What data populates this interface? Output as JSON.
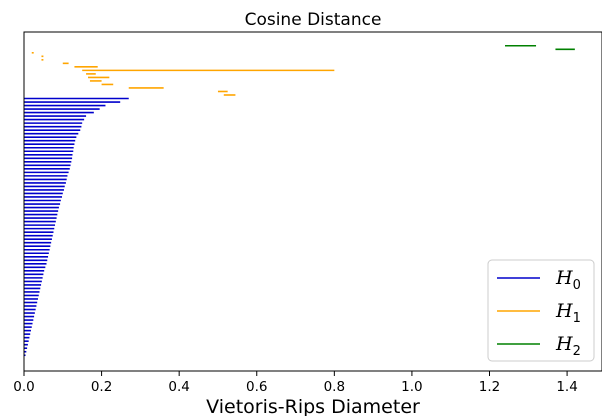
{
  "chart_data": {
    "type": "barcode",
    "title": "Cosine Distance",
    "xlabel": "Vietoris-Rips Diameter",
    "ylabel": "",
    "xlim": [
      0,
      1.49
    ],
    "xticks": [
      0.0,
      0.2,
      0.4,
      0.6,
      0.8,
      1.0,
      1.2,
      1.4
    ],
    "xtick_labels": [
      "0.0",
      "0.2",
      "0.4",
      "0.6",
      "0.8",
      "1.0",
      "1.2",
      "1.4"
    ],
    "grid": false,
    "legend_position": "lower-right",
    "series": [
      {
        "name": "H",
        "sub": "0",
        "color": "#0000cc",
        "bars": [
          [
            0,
            0.27
          ],
          [
            0,
            0.248
          ],
          [
            0,
            0.21
          ],
          [
            0,
            0.195
          ],
          [
            0,
            0.18
          ],
          [
            0,
            0.16
          ],
          [
            0,
            0.155
          ],
          [
            0,
            0.15
          ],
          [
            0,
            0.148
          ],
          [
            0,
            0.145
          ],
          [
            0,
            0.14
          ],
          [
            0,
            0.135
          ],
          [
            0,
            0.132
          ],
          [
            0,
            0.13
          ],
          [
            0,
            0.128
          ],
          [
            0,
            0.127
          ],
          [
            0,
            0.125
          ],
          [
            0,
            0.124
          ],
          [
            0,
            0.122
          ],
          [
            0,
            0.12
          ],
          [
            0,
            0.118
          ],
          [
            0,
            0.115
          ],
          [
            0,
            0.112
          ],
          [
            0,
            0.11
          ],
          [
            0,
            0.108
          ],
          [
            0,
            0.105
          ],
          [
            0,
            0.103
          ],
          [
            0,
            0.1
          ],
          [
            0,
            0.098
          ],
          [
            0,
            0.095
          ],
          [
            0,
            0.093
          ],
          [
            0,
            0.09
          ],
          [
            0,
            0.088
          ],
          [
            0,
            0.086
          ],
          [
            0,
            0.084
          ],
          [
            0,
            0.082
          ],
          [
            0,
            0.08
          ],
          [
            0,
            0.078
          ],
          [
            0,
            0.076
          ],
          [
            0,
            0.074
          ],
          [
            0,
            0.072
          ],
          [
            0,
            0.07
          ],
          [
            0,
            0.068
          ],
          [
            0,
            0.066
          ],
          [
            0,
            0.064
          ],
          [
            0,
            0.062
          ],
          [
            0,
            0.06
          ],
          [
            0,
            0.058
          ],
          [
            0,
            0.055
          ],
          [
            0,
            0.052
          ],
          [
            0,
            0.05
          ],
          [
            0,
            0.048
          ],
          [
            0,
            0.046
          ],
          [
            0,
            0.044
          ],
          [
            0,
            0.042
          ],
          [
            0,
            0.04
          ],
          [
            0,
            0.038
          ],
          [
            0,
            0.036
          ],
          [
            0,
            0.034
          ],
          [
            0,
            0.032
          ],
          [
            0,
            0.03
          ],
          [
            0,
            0.028
          ],
          [
            0,
            0.026
          ],
          [
            0,
            0.024
          ],
          [
            0,
            0.022
          ],
          [
            0,
            0.02
          ],
          [
            0,
            0.018
          ],
          [
            0,
            0.016
          ],
          [
            0,
            0.014
          ],
          [
            0,
            0.012
          ],
          [
            0,
            0.01
          ],
          [
            0,
            0.008
          ],
          [
            0,
            0.006
          ],
          [
            0,
            0.004
          ]
        ]
      },
      {
        "name": "H",
        "sub": "1",
        "color": "#ffa500",
        "bars": [
          [
            0.02,
            0.025
          ],
          [
            0.045,
            0.05
          ],
          [
            0.045,
            0.05
          ],
          [
            0.1,
            0.115
          ],
          [
            0.13,
            0.19
          ],
          [
            0.15,
            0.8
          ],
          [
            0.16,
            0.185
          ],
          [
            0.165,
            0.22
          ],
          [
            0.17,
            0.2
          ],
          [
            0.2,
            0.23
          ],
          [
            0.27,
            0.36
          ],
          [
            0.5,
            0.525
          ],
          [
            0.515,
            0.545
          ]
        ]
      },
      {
        "name": "H",
        "sub": "2",
        "color": "#008000",
        "bars": [
          [
            1.24,
            1.32
          ],
          [
            1.37,
            1.42
          ]
        ]
      }
    ]
  }
}
